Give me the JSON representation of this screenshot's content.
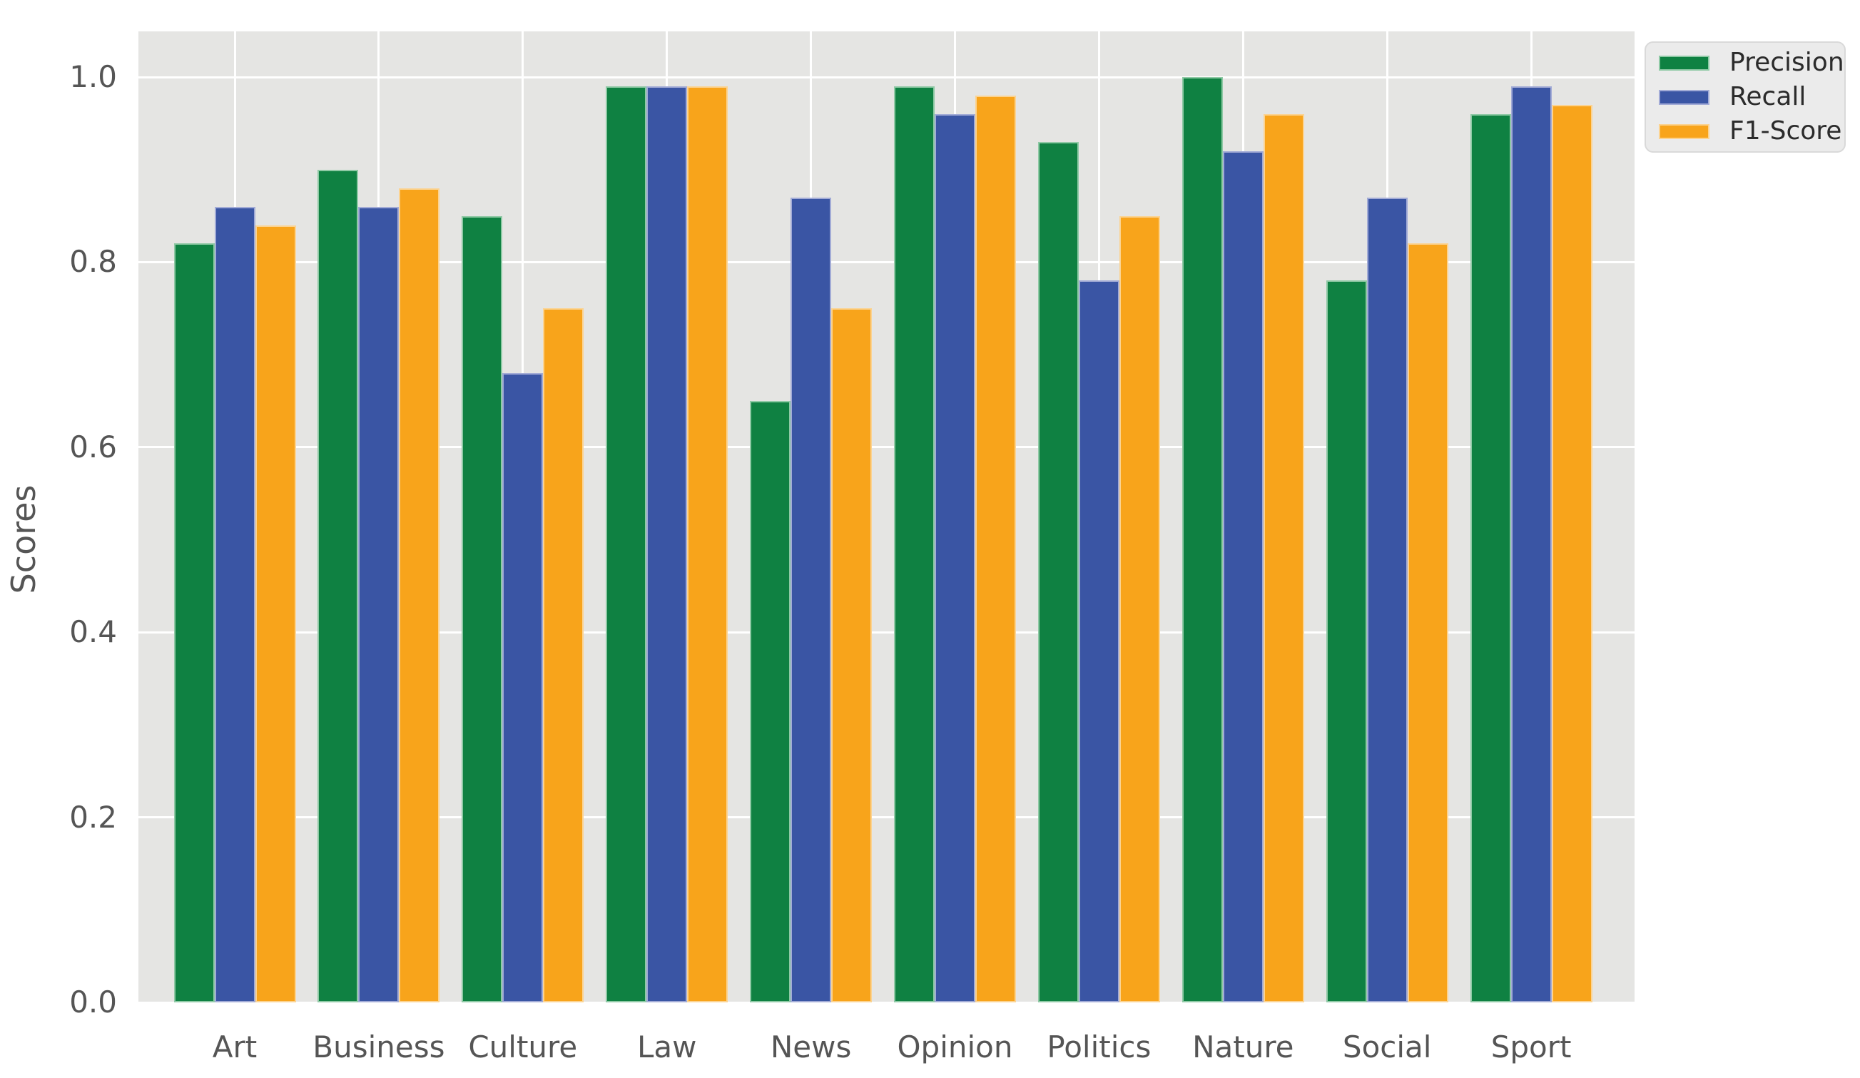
{
  "chart_data": {
    "type": "bar",
    "title": "",
    "ylabel": "Scores",
    "categories": [
      "Art",
      "Business",
      "Culture",
      "Law",
      "News",
      "Opinion",
      "Politics",
      "Nature",
      "Social",
      "Sport"
    ],
    "series": [
      {
        "name": "Precision",
        "color": "#0f8142",
        "edge_color": "#8fc9a5",
        "values": [
          0.82,
          0.9,
          0.85,
          0.99,
          0.65,
          0.99,
          0.93,
          1.0,
          0.78,
          0.96
        ]
      },
      {
        "name": "Recall",
        "color": "#3a55a4",
        "edge_color": "#a2abd6",
        "values": [
          0.86,
          0.86,
          0.68,
          0.99,
          0.87,
          0.96,
          0.78,
          0.92,
          0.87,
          0.99
        ]
      },
      {
        "name": "F1-Score",
        "color": "#f8a41b",
        "edge_color": "#fbd392",
        "values": [
          0.84,
          0.88,
          0.75,
          0.99,
          0.75,
          0.98,
          0.85,
          0.96,
          0.82,
          0.97
        ]
      }
    ],
    "ylim": [
      0,
      1.048
    ],
    "yticks": [
      0.0,
      0.2,
      0.4,
      0.6,
      0.8,
      1.0
    ],
    "ytick_labels": [
      "0.0",
      "0.2",
      "0.4",
      "0.6",
      "0.8",
      "1.0"
    ],
    "grid": true,
    "legend_position": "upper right, outside axes",
    "plot_bg_color": "#e5e5e3",
    "gridline_color": "#ffffff",
    "tick_label_color": "#555555",
    "legend_bg_color": "#ebebeb"
  }
}
